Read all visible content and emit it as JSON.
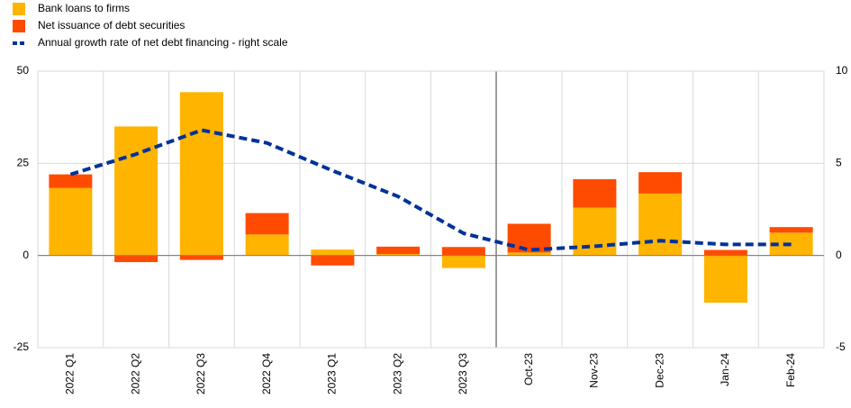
{
  "chart_data": {
    "type": "bar",
    "stacked": true,
    "categories": [
      "2022 Q1",
      "2022 Q2",
      "2022 Q3",
      "2022 Q4",
      "2023 Q1",
      "2023 Q2",
      "2023 Q3",
      "Oct-23",
      "Nov-23",
      "Dec-23",
      "Jan-24",
      "Feb-24"
    ],
    "series": [
      {
        "name": "Bank loans to firms",
        "color": "#ffb400",
        "values": [
          18.3,
          35,
          44.3,
          5.7,
          1.6,
          0.4,
          -3.4,
          0.8,
          13,
          16.8,
          -12.8,
          6.2
        ]
      },
      {
        "name": "Net issuance of debt securities",
        "color": "#ff4b00",
        "values": [
          3.7,
          -1.8,
          -1.2,
          5.8,
          -2.7,
          2.0,
          2.3,
          7.8,
          7.7,
          5.8,
          1.5,
          1.5
        ]
      },
      {
        "name": "Annual growth rate of net debt financing - right scale",
        "color": "#003299",
        "axis": "y2",
        "values": [
          4.4,
          5.5,
          6.8,
          6.1,
          4.6,
          3.2,
          1.2,
          0.3,
          0.5,
          0.8,
          0.6,
          0.6
        ]
      }
    ],
    "ylim": [
      -25,
      50
    ],
    "yticks": [
      -25,
      0,
      25,
      50
    ],
    "y2lim": [
      -5,
      10
    ],
    "y2ticks": [
      -5,
      0,
      5,
      10
    ],
    "grid": true
  }
}
